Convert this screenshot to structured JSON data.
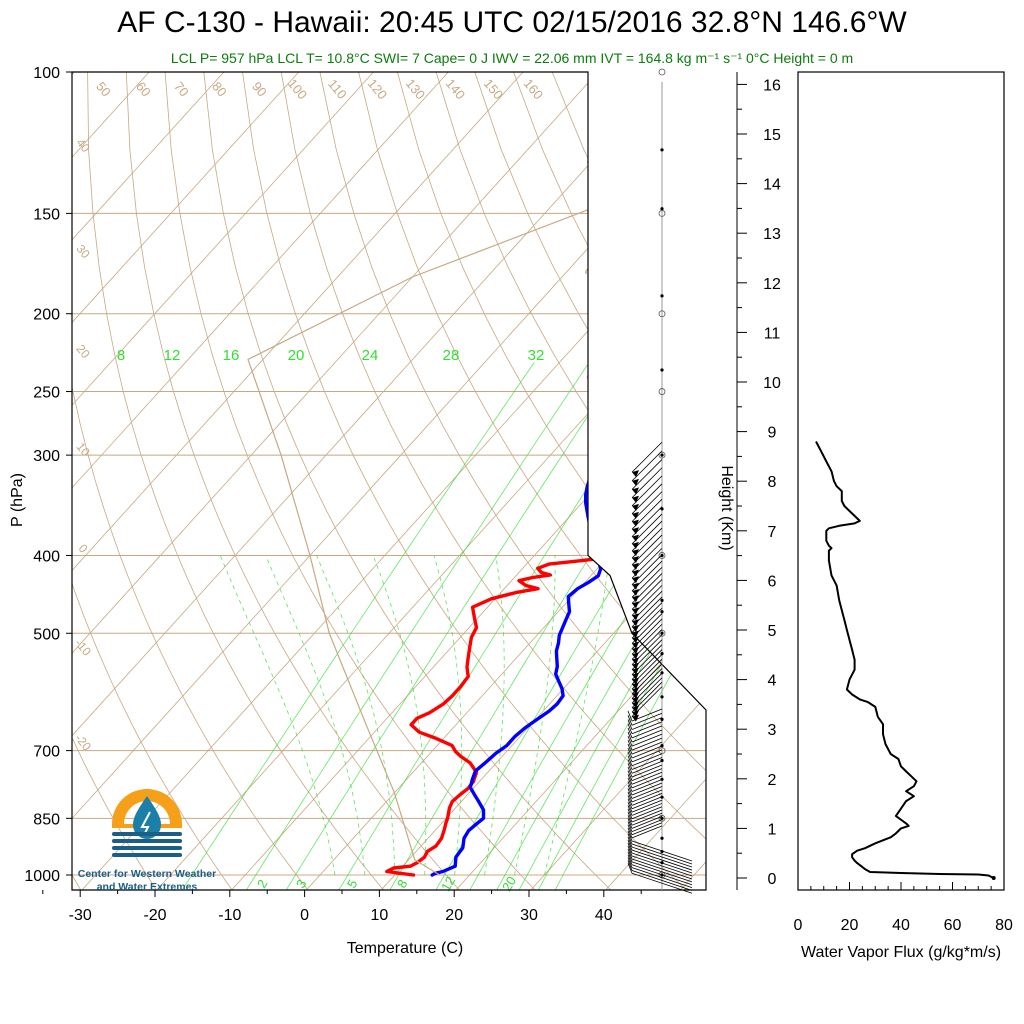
{
  "header": {
    "title": "AF C-130 - Hawaii: 20:45 UTC 02/15/2016  32.8°N 146.6°W",
    "subtitle": "LCL P= 957 hPa  LCL T= 10.8°C  SWI= 7  Cape= 0 J  IWV = 22.06 mm  IVT = 164.8 kg m⁻¹ s⁻¹  0°C Height = 0 m"
  },
  "logo": {
    "line1": "Center for Western Weather",
    "line2": "and Water Extremes",
    "colors": {
      "sun": "#f6a01a",
      "drop": "#1b7fa8",
      "water": "#1b5f86"
    }
  },
  "colors": {
    "temperature": "#ff0000",
    "dewpoint": "#0000ff",
    "isotherm": "#c8a882",
    "mixing_ratio": "#33dd33",
    "flux": "#000000",
    "wind": "#000000"
  },
  "chart_data": [
    {
      "type": "line",
      "subtype": "skew-t",
      "xlabel": "Temperature (C)",
      "ylabel": "P (hPa)",
      "xlim": [
        -35,
        50
      ],
      "ylim": [
        1050,
        100
      ],
      "x_ticks": [
        -30,
        -20,
        -10,
        0,
        10,
        20,
        30,
        40
      ],
      "y_ticks": [
        100,
        150,
        200,
        250,
        300,
        400,
        500,
        700,
        850,
        1000
      ],
      "dry_adiabat_labels": [
        50,
        60,
        70,
        80,
        90,
        100,
        110,
        120,
        130,
        140,
        150,
        160
      ],
      "isotherm_labels_left": [
        40,
        30,
        20,
        10,
        0,
        -10,
        -20
      ],
      "isotherm_labels_right": [
        30,
        20,
        10,
        0,
        -10,
        -20,
        -30
      ],
      "mixing_ratio_labels_top": [
        8,
        12,
        16,
        20,
        24,
        28,
        32
      ],
      "mixing_ratio_labels_bottom": [
        2,
        3,
        5,
        8,
        12,
        20
      ],
      "series": [
        {
          "name": "temperature",
          "points": [
            [
              12.5,
              1000
            ],
            [
              10.5,
              995
            ],
            [
              8.5,
              990
            ],
            [
              9,
              980
            ],
            [
              11,
              975
            ],
            [
              11.5,
              965
            ],
            [
              11.8,
              950
            ],
            [
              11.5,
              935
            ],
            [
              12,
              920
            ],
            [
              11.8,
              900
            ],
            [
              11.2,
              880
            ],
            [
              10.5,
              860
            ],
            [
              10.2,
              850
            ],
            [
              9.8,
              840
            ],
            [
              9.2,
              825
            ],
            [
              8.8,
              810
            ],
            [
              9,
              795
            ],
            [
              9.3,
              780
            ],
            [
              9.2,
              765
            ],
            [
              8.5,
              745
            ],
            [
              6.5,
              725
            ],
            [
              4.5,
              712
            ],
            [
              3.2,
              702
            ],
            [
              2,
              690
            ],
            [
              -1,
              676
            ],
            [
              -4,
              664
            ],
            [
              -6,
              650
            ],
            [
              -6,
              638
            ],
            [
              -5,
              628
            ],
            [
              -4.2,
              612
            ],
            [
              -4,
              598
            ],
            [
              -4,
              582
            ],
            [
              -4.2,
              566
            ],
            [
              -5.5,
              551
            ],
            [
              -6.5,
              536
            ],
            [
              -7.5,
              521
            ],
            [
              -8.5,
              506
            ],
            [
              -9,
              492
            ],
            [
              -10.5,
              478
            ],
            [
              -12,
              464
            ],
            [
              -10.5,
              453
            ],
            [
              -8,
              445
            ],
            [
              -5.5,
              440
            ],
            [
              -7.5,
              436
            ],
            [
              -9,
              430
            ],
            [
              -7.5,
              426
            ],
            [
              -5.5,
              423
            ],
            [
              -7,
              420
            ],
            [
              -8,
              415
            ],
            [
              -7,
              410
            ],
            [
              -3,
              406
            ],
            [
              -0.5,
              403
            ],
            [
              3,
              401
            ],
            [
              4,
              399
            ],
            [
              3.5,
              393
            ],
            [
              1.5,
              386
            ],
            [
              1,
              378
            ],
            [
              0,
              370
            ],
            [
              -1,
              363
            ],
            [
              -2.5,
              355
            ],
            [
              -3.5,
              348
            ],
            [
              -4,
              341
            ],
            [
              -4.5,
              334
            ],
            [
              -4,
              327
            ],
            [
              -4,
              321
            ],
            [
              -4.5,
              315
            ],
            [
              -6.5,
              311
            ],
            [
              -9,
              308
            ],
            [
              -11.5,
              305
            ]
          ]
        },
        {
          "name": "dewpoint",
          "points": [
            [
              15,
              1000
            ],
            [
              15.2,
              995
            ],
            [
              16,
              990
            ],
            [
              17,
              975
            ],
            [
              16,
              950
            ],
            [
              15.8,
              925
            ],
            [
              14.8,
              900
            ],
            [
              14.5,
              880
            ],
            [
              14.8,
              860
            ],
            [
              15,
              850
            ],
            [
              14,
              830
            ],
            [
              12.5,
              812
            ],
            [
              11,
              795
            ],
            [
              9.5,
              778
            ],
            [
              8.8,
              760
            ],
            [
              8.2,
              742
            ],
            [
              8.5,
              725
            ],
            [
              8.8,
              705
            ],
            [
              9.3,
              690
            ],
            [
              9.3,
              672
            ],
            [
              9.6,
              656
            ],
            [
              10.2,
              640
            ],
            [
              10.8,
              625
            ],
            [
              11,
              612
            ],
            [
              10.8,
              598
            ],
            [
              9.8,
              586
            ],
            [
              8.5,
              574
            ],
            [
              7.2,
              562
            ],
            [
              6.5,
              550
            ],
            [
              5.5,
              538
            ],
            [
              4.5,
              526
            ],
            [
              3.8,
              514
            ],
            [
              3,
              503
            ],
            [
              2.5,
              492
            ],
            [
              2,
              481
            ],
            [
              1.5,
              470
            ],
            [
              0.5,
              460
            ],
            [
              -0.5,
              450
            ],
            [
              -0.2,
              440
            ],
            [
              0.5,
              432
            ],
            [
              1,
              424
            ],
            [
              0.5,
              416
            ],
            [
              -0.5,
              408
            ],
            [
              -1.5,
              400
            ],
            [
              -2.5,
              393
            ],
            [
              -3.5,
              386
            ],
            [
              -4.5,
              379
            ],
            [
              -5.5,
              372
            ],
            [
              -6.5,
              365
            ],
            [
              -7.5,
              358
            ],
            [
              -8.5,
              351
            ],
            [
              -9.5,
              344
            ],
            [
              -10.5,
              336
            ],
            [
              -11.2,
              329
            ],
            [
              -11.8,
              322
            ],
            [
              -12,
              315
            ],
            [
              -12.2,
              309
            ]
          ]
        },
        {
          "name": "parcel",
          "points": [
            [
              16,
              1000
            ],
            [
              10.8,
              957
            ],
            [
              0,
              790
            ],
            [
              -12,
              650
            ],
            [
              -28,
              500
            ],
            [
              -40,
              400
            ],
            [
              -56,
              300
            ],
            [
              -72,
              228
            ],
            [
              -60,
              180
            ],
            [
              -40,
              140
            ],
            [
              -20,
              100
            ]
          ]
        }
      ]
    },
    {
      "type": "line",
      "subtype": "profile",
      "xlabel": "Water Vapor Flux (g/kg*m/s)",
      "ylabel": "Height (Km)",
      "xlim": [
        0,
        80
      ],
      "ylim": [
        -0.2,
        16.5
      ],
      "x_ticks": [
        0,
        20,
        40,
        60,
        80
      ],
      "y_ticks": [
        0,
        1,
        2,
        3,
        4,
        5,
        6,
        7,
        8,
        9,
        10,
        11,
        12,
        13,
        14,
        15,
        16
      ],
      "series": [
        {
          "name": "flux",
          "points": [
            [
              76,
              0
            ],
            [
              74,
              0.05
            ],
            [
              70,
              0.07
            ],
            [
              55,
              0.08
            ],
            [
              40,
              0.1
            ],
            [
              28,
              0.12
            ],
            [
              26,
              0.18
            ],
            [
              25,
              0.22
            ],
            [
              23,
              0.3
            ],
            [
              22,
              0.35
            ],
            [
              21,
              0.42
            ],
            [
              21,
              0.48
            ],
            [
              23,
              0.55
            ],
            [
              26,
              0.6
            ],
            [
              30,
              0.7
            ],
            [
              34,
              0.78
            ],
            [
              36,
              0.82
            ],
            [
              38,
              0.9
            ],
            [
              40,
              1
            ],
            [
              43,
              1.05
            ],
            [
              42,
              1.1
            ],
            [
              38,
              1.25
            ],
            [
              40,
              1.4
            ],
            [
              42,
              1.55
            ],
            [
              45,
              1.65
            ],
            [
              42,
              1.75
            ],
            [
              45,
              1.85
            ],
            [
              46,
              1.95
            ],
            [
              44,
              2.05
            ],
            [
              42,
              2.15
            ],
            [
              40,
              2.25
            ],
            [
              39,
              2.4
            ],
            [
              36,
              2.5
            ],
            [
              35,
              2.6
            ],
            [
              34,
              2.7
            ],
            [
              33,
              2.9
            ],
            [
              33,
              3.1
            ],
            [
              31,
              3.25
            ],
            [
              30,
              3.45
            ],
            [
              27,
              3.55
            ],
            [
              24,
              3.6
            ],
            [
              21,
              3.7
            ],
            [
              19,
              3.8
            ],
            [
              20,
              4.0
            ],
            [
              22,
              4.2
            ],
            [
              22,
              4.4
            ],
            [
              21,
              4.6
            ],
            [
              20,
              4.8
            ],
            [
              19,
              5.0
            ],
            [
              18,
              5.2
            ],
            [
              17,
              5.4
            ],
            [
              16,
              5.6
            ],
            [
              15,
              5.9
            ],
            [
              13,
              6.1
            ],
            [
              12,
              6.4
            ],
            [
              12,
              6.6
            ],
            [
              13,
              6.65
            ],
            [
              12,
              6.7
            ],
            [
              11,
              6.8
            ],
            [
              11,
              7.0
            ],
            [
              12,
              7.05
            ],
            [
              16,
              7.1
            ],
            [
              22,
              7.15
            ],
            [
              24,
              7.2
            ],
            [
              22,
              7.3
            ],
            [
              20,
              7.4
            ],
            [
              18,
              7.5
            ],
            [
              17,
              7.6
            ],
            [
              17,
              7.8
            ],
            [
              15,
              7.9
            ],
            [
              14,
              8.0
            ],
            [
              13,
              8.2
            ],
            [
              11,
              8.4
            ],
            [
              9,
              8.6
            ],
            [
              7,
              8.8
            ]
          ]
        }
      ]
    }
  ]
}
